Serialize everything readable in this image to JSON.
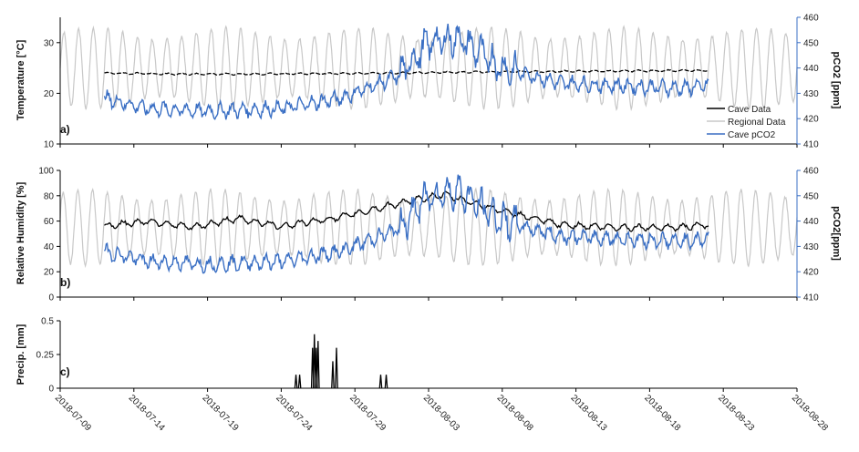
{
  "colors": {
    "cave": "#000000",
    "regional": "#c8c8c8",
    "pco2": "#3a6fc4",
    "pco2_axis": "#3a6fc4",
    "precip": "#000000"
  },
  "x_axis": {
    "tick_labels": [
      "2018-07-09",
      "2018-07-14",
      "2018-07-19",
      "2018-07-24",
      "2018-07-29",
      "2018-08-03",
      "2018-08-08",
      "2018-08-13",
      "2018-08-18",
      "2018-08-23",
      "2018-08-28"
    ]
  },
  "chart_data": [
    {
      "type": "line",
      "panel_label": "a)",
      "ylabel": "Temperature  [°C]",
      "y2label": "pCO2 [ppm]",
      "ylim": [
        10,
        35
      ],
      "yticks": [
        10,
        20,
        30
      ],
      "y2lim": [
        410,
        460
      ],
      "y2ticks": [
        410,
        420,
        430,
        440,
        450,
        460
      ],
      "xlim": [
        "2018-07-09",
        "2018-08-28"
      ],
      "legend": [
        "Cave Data",
        "Regional Data",
        "Cave pCO2"
      ],
      "legend_position": "right",
      "series": [
        {
          "name": "Cave Data",
          "axis": "left",
          "x": [
            "2018-07-12",
            "2018-07-17",
            "2018-07-22",
            "2018-07-27",
            "2018-08-01",
            "2018-08-06",
            "2018-08-11",
            "2018-08-16",
            "2018-08-21",
            "2018-08-22"
          ],
          "values": [
            24.0,
            23.8,
            23.8,
            23.9,
            24.0,
            24.2,
            24.3,
            24.4,
            24.5,
            24.5
          ]
        },
        {
          "name": "Regional Data",
          "axis": "left",
          "x": [
            "2018-07-09",
            "2018-08-28"
          ],
          "diurnal": true,
          "values_range": [
            17,
            33
          ]
        },
        {
          "name": "Cave pCO2",
          "axis": "right",
          "x": [
            "2018-07-12",
            "2018-07-15",
            "2018-07-19",
            "2018-07-24",
            "2018-07-28",
            "2018-08-01",
            "2018-08-03",
            "2018-08-05",
            "2018-08-08",
            "2018-08-12",
            "2018-08-16",
            "2018-08-20",
            "2018-08-22"
          ],
          "values": [
            428,
            424,
            423,
            424,
            428,
            437,
            450,
            452,
            440,
            434,
            433,
            432,
            433
          ]
        }
      ]
    },
    {
      "type": "line",
      "panel_label": "b)",
      "ylabel": "Relative Humidity [%]",
      "y2label": "pCO2[ppm]",
      "ylim": [
        0,
        100
      ],
      "yticks": [
        0,
        20,
        40,
        60,
        80,
        100
      ],
      "y2lim": [
        410,
        460
      ],
      "y2ticks": [
        410,
        420,
        430,
        440,
        450,
        460
      ],
      "xlim": [
        "2018-07-09",
        "2018-08-28"
      ],
      "series": [
        {
          "name": "Cave Data",
          "axis": "left",
          "x": [
            "2018-07-12",
            "2018-07-15",
            "2018-07-18",
            "2018-07-21",
            "2018-07-24",
            "2018-07-28",
            "2018-08-01",
            "2018-08-04",
            "2018-08-08",
            "2018-08-12",
            "2018-08-16",
            "2018-08-20",
            "2018-08-22"
          ],
          "values": [
            56,
            60,
            55,
            62,
            56,
            63,
            74,
            81,
            68,
            57,
            55,
            55,
            57
          ]
        },
        {
          "name": "Regional Data",
          "axis": "left",
          "x": [
            "2018-07-09",
            "2018-08-28"
          ],
          "diurnal": true,
          "values_range": [
            25,
            85
          ]
        },
        {
          "name": "Cave pCO2",
          "axis": "right",
          "x": [
            "2018-07-12",
            "2018-07-15",
            "2018-07-19",
            "2018-07-24",
            "2018-07-28",
            "2018-08-01",
            "2018-08-03",
            "2018-08-05",
            "2018-08-08",
            "2018-08-12",
            "2018-08-16",
            "2018-08-20",
            "2018-08-22"
          ],
          "values": [
            428,
            424,
            423,
            424,
            428,
            437,
            450,
            452,
            440,
            434,
            433,
            432,
            433
          ]
        }
      ]
    },
    {
      "type": "bar",
      "panel_label": "c)",
      "ylabel": "Precip.  [mm]",
      "ylim": [
        0,
        0.5
      ],
      "yticks": [
        "0",
        "0.25",
        "0.5"
      ],
      "xlim": [
        "2018-07-09",
        "2018-08-28"
      ],
      "x": [
        "2018-07-25T00",
        "2018-07-25T06",
        "2018-07-26T03",
        "2018-07-26T06",
        "2018-07-26T09",
        "2018-07-26T12",
        "2018-07-27T12",
        "2018-07-27T18",
        "2018-07-30T18",
        "2018-07-31T03"
      ],
      "values": [
        0.1,
        0.1,
        0.3,
        0.4,
        0.3,
        0.35,
        0.2,
        0.3,
        0.1,
        0.1
      ]
    }
  ]
}
